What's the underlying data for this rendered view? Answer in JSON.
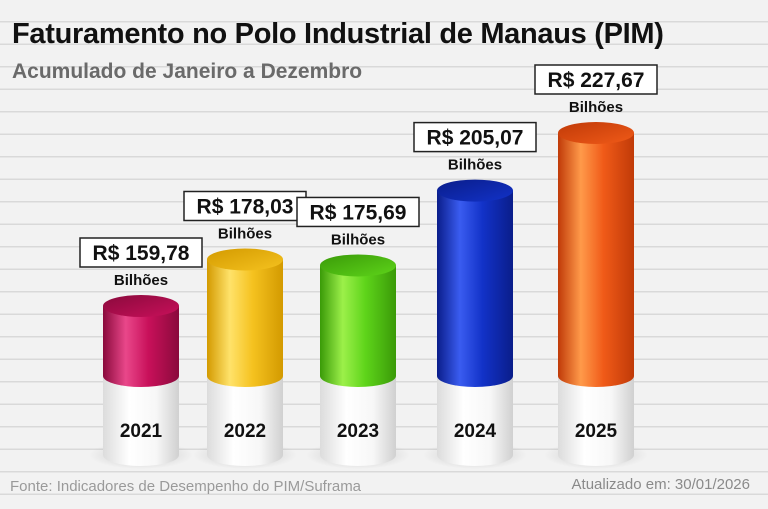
{
  "header": {
    "title": "Faturamento no Polo Industrial de Manaus (PIM)",
    "subtitle": "Acumulado de Janeiro a Dezembro"
  },
  "footer": {
    "source": "Fonte: Indicadores de Desempenho do PIM/Suframa",
    "updated": "Atualizado em: 30/01/2026"
  },
  "chart_data": {
    "type": "bar",
    "title": "Faturamento no Polo Industrial de Manaus (PIM)",
    "subtitle": "Acumulado de Janeiro a Dezembro",
    "categories": [
      "2021",
      "2022",
      "2023",
      "2024",
      "2025"
    ],
    "values": [
      159.78,
      178.03,
      175.69,
      205.07,
      227.67
    ],
    "value_labels": [
      "R$ 159,78",
      "R$ 178,03",
      "R$ 175,69",
      "R$ 205,07",
      "R$ 227,67"
    ],
    "unit_label": "Bilhões",
    "colors": [
      "#c8105a",
      "#f5c21f",
      "#5ed41a",
      "#1232c8",
      "#f05a18"
    ],
    "highlight_colors": [
      "#e9478a",
      "#ffe26a",
      "#9cf04a",
      "#3a5cf0",
      "#ff9a4a"
    ],
    "dark_colors": [
      "#8a0a3c",
      "#d39a00",
      "#3a9a08",
      "#0a1d8a",
      "#c03a08"
    ]
  }
}
